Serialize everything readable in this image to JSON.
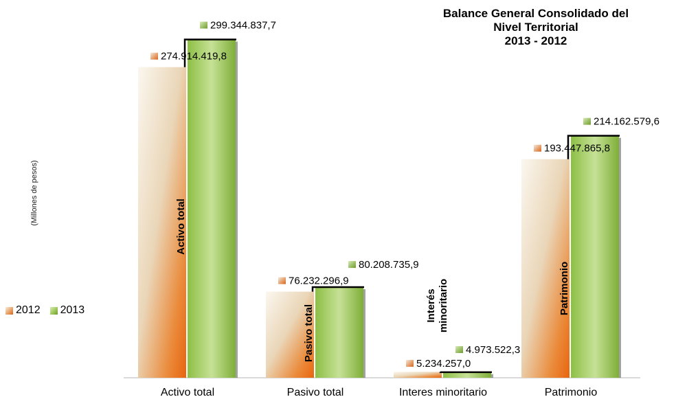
{
  "chart_data": {
    "type": "bar",
    "title": [
      "Balance General Consolidado del",
      "Nivel Territorial",
      "2013 - 2012"
    ],
    "ylabel": "(Millones de pesos)",
    "categories": [
      "Activo total",
      "Pasivo total",
      "Interes minoritario",
      "Patrimonio"
    ],
    "inner_labels": [
      [
        "Activo total"
      ],
      [
        "Pasivo total"
      ],
      [
        "Interés",
        "minoritario"
      ],
      [
        "Patrimonio"
      ]
    ],
    "series": [
      {
        "name": "2012",
        "values": [
          274914419.8,
          76232296.9,
          5234257.0,
          193447865.8
        ],
        "labels": [
          "274.914.419,8",
          "76.232.296,9",
          "5.234.257,0",
          "193.447.865,8"
        ]
      },
      {
        "name": "2013",
        "values": [
          299344837.7,
          80208735.9,
          4973522.3,
          214162579.6
        ],
        "labels": [
          "299.344.837,7",
          "80.208.735,9",
          "4.973.522,3",
          "214.162.579,6"
        ]
      }
    ],
    "ylim": [
      0,
      310000000
    ],
    "grid": false,
    "legend": "left"
  }
}
